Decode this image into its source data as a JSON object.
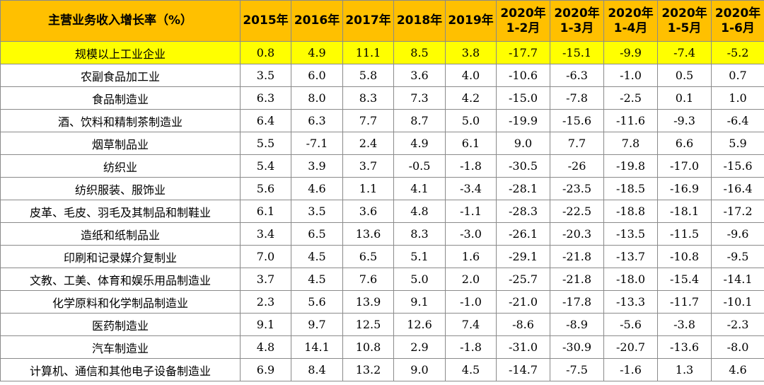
{
  "table": {
    "header": {
      "title": "主营业务收入增长率（%）",
      "columns": [
        {
          "l1": "2015年",
          "l2": ""
        },
        {
          "l1": "2016年",
          "l2": ""
        },
        {
          "l1": "2017年",
          "l2": ""
        },
        {
          "l1": "2018年",
          "l2": ""
        },
        {
          "l1": "2019年",
          "l2": ""
        },
        {
          "l1": "2020年",
          "l2": "1-2月"
        },
        {
          "l1": "2020年",
          "l2": "1-3月"
        },
        {
          "l1": "2020年",
          "l2": "1-4月"
        },
        {
          "l1": "2020年",
          "l2": "1-5月"
        },
        {
          "l1": "2020年",
          "l2": "1-6月"
        }
      ]
    },
    "rows": [
      {
        "name": "规模以上工业企业",
        "highlight": true,
        "values": [
          "0.8",
          "4.9",
          "11.1",
          "8.5",
          "3.8",
          "-17.7",
          "-15.1",
          "-9.9",
          "-7.4",
          "-5.2"
        ]
      },
      {
        "name": "农副食品加工业",
        "values": [
          "3.5",
          "6.0",
          "5.8",
          "3.6",
          "4.0",
          "-10.6",
          "-6.3",
          "-1.0",
          "0.5",
          "0.7"
        ]
      },
      {
        "name": "食品制造业",
        "values": [
          "6.3",
          "8.0",
          "8.3",
          "7.3",
          "4.2",
          "-15.0",
          "-7.8",
          "-2.5",
          "0.1",
          "1.0"
        ]
      },
      {
        "name": "酒、饮料和精制茶制造业",
        "values": [
          "6.4",
          "6.3",
          "7.7",
          "8.7",
          "5.0",
          "-19.9",
          "-15.6",
          "-11.6",
          "-9.3",
          "-6.4"
        ]
      },
      {
        "name": "烟草制品业",
        "values": [
          "5.5",
          "-7.1",
          "2.4",
          "4.9",
          "6.1",
          "9.0",
          "7.7",
          "7.8",
          "6.6",
          "5.9"
        ]
      },
      {
        "name": "纺织业",
        "values": [
          "5.4",
          "3.9",
          "3.7",
          "-0.5",
          "-1.8",
          "-30.5",
          "-26",
          "-19.8",
          "-17.0",
          "-15.6"
        ]
      },
      {
        "name": "纺织服装、服饰业",
        "values": [
          "5.6",
          "4.6",
          "1.1",
          "4.1",
          "-3.4",
          "-28.1",
          "-23.5",
          "-18.5",
          "-16.9",
          "-16.4"
        ]
      },
      {
        "name": "皮革、毛皮、羽毛及其制品和制鞋业",
        "values": [
          "6.1",
          "3.5",
          "3.6",
          "4.8",
          "-1.1",
          "-28.3",
          "-22.5",
          "-18.8",
          "-18.1",
          "-17.2"
        ]
      },
      {
        "name": "造纸和纸制品业",
        "values": [
          "3.4",
          "6.5",
          "13.6",
          "8.3",
          "-3.0",
          "-26.1",
          "-20.3",
          "-13.5",
          "-11.5",
          "-9.6"
        ]
      },
      {
        "name": "印刷和记录媒介复制业",
        "values": [
          "7.0",
          "4.5",
          "6.5",
          "5.1",
          "1.6",
          "-29.1",
          "-21.8",
          "-13.7",
          "-10.8",
          "-9.5"
        ]
      },
      {
        "name": "文教、工美、体育和娱乐用品制造业",
        "values": [
          "3.7",
          "4.5",
          "7.6",
          "5.0",
          "2.0",
          "-25.7",
          "-21.8",
          "-18.0",
          "-15.4",
          "-14.1"
        ]
      },
      {
        "name": "化学原料和化学制品制造业",
        "values": [
          "2.3",
          "5.6",
          "13.9",
          "9.1",
          "-1.0",
          "-21.0",
          "-17.8",
          "-13.3",
          "-11.7",
          "-10.1"
        ]
      },
      {
        "name": "医药制造业",
        "values": [
          "9.1",
          "9.7",
          "12.5",
          "12.6",
          "7.4",
          "-8.6",
          "-8.9",
          "-5.6",
          "-3.8",
          "-2.3"
        ]
      },
      {
        "name": "汽车制造业",
        "values": [
          "4.8",
          "14.1",
          "10.8",
          "2.9",
          "-1.8",
          "-31.0",
          "-30.9",
          "-20.7",
          "-13.6",
          "-8.0"
        ]
      },
      {
        "name": "计算机、通信和其他电子设备制造业",
        "values": [
          "6.9",
          "8.4",
          "13.2",
          "9.0",
          "4.5",
          "-14.7",
          "-7.5",
          "-1.6",
          "1.3",
          "4.6"
        ]
      }
    ]
  }
}
